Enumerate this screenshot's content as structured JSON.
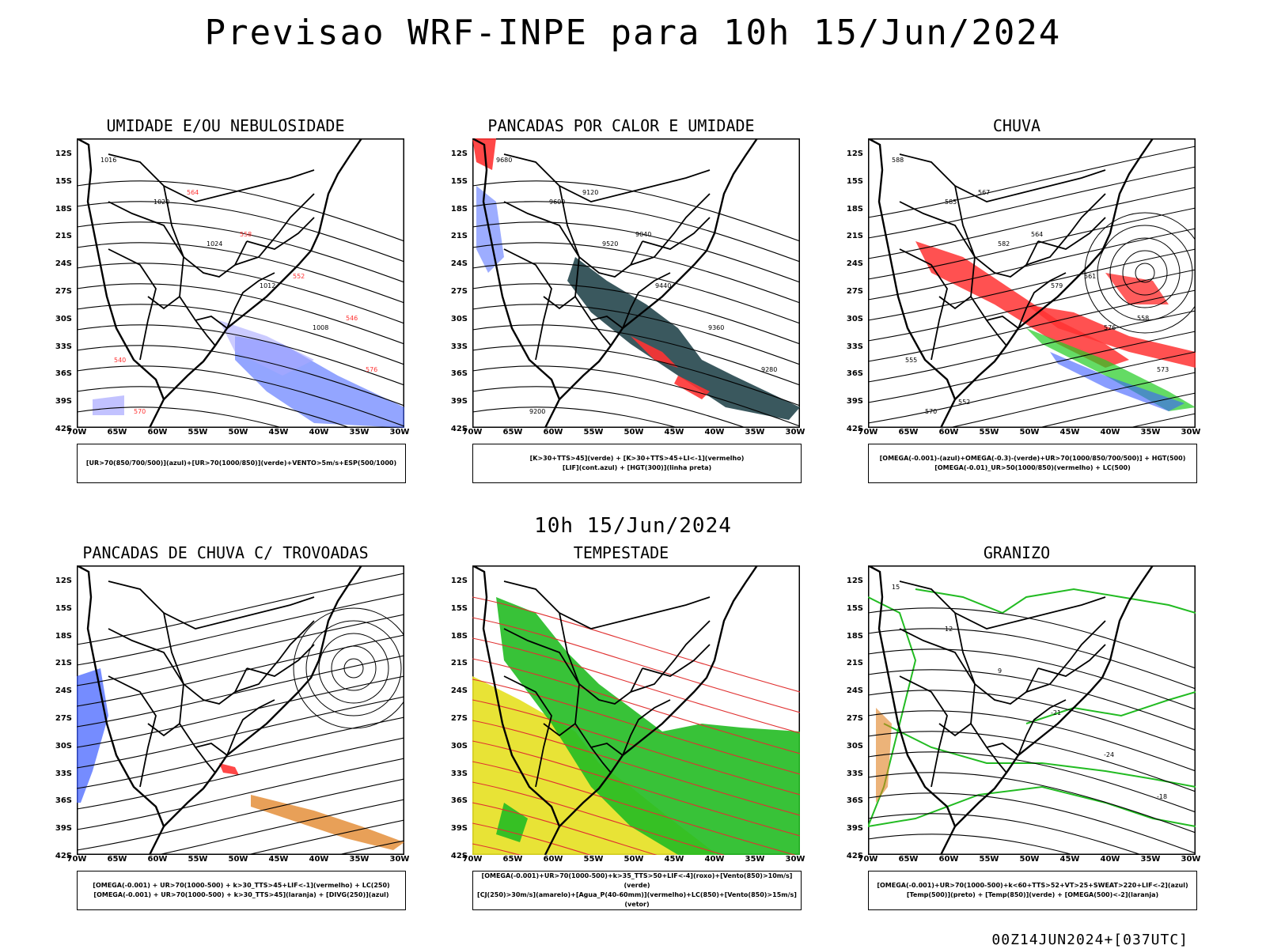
{
  "header": {
    "title": "Previsao WRF-INPE  para 10h 15/Jun/2024"
  },
  "subheader": {
    "title": "10h 15/Jun/2024"
  },
  "footer": {
    "run": "00Z14JUN2024+[037UTC]"
  },
  "axes": {
    "lat_labels": [
      "12S",
      "15S",
      "18S",
      "21S",
      "24S",
      "27S",
      "30S",
      "33S",
      "36S",
      "39S",
      "42S"
    ],
    "lon_labels": [
      "70W",
      "65W",
      "60W",
      "55W",
      "50W",
      "45W",
      "40W",
      "35W",
      "30W"
    ]
  },
  "colors": {
    "blue": "#3b5bff",
    "green": "#22cc22",
    "red": "#ff3333",
    "orange": "#e08020",
    "yellow": "#e6e020",
    "darkteal": "#2f4f55",
    "lightblue": "#a8a8ff"
  },
  "panels": [
    {
      "title": "UMIDADE E/OU NEBULOSIDADE",
      "legend": [
        "[UR>70(850/700/500)](azul)+[UR>70(1000/850)](verde)+VENTO>5m/s+ESP(500/1000)"
      ],
      "contour_labels": [
        "1016",
        "1020",
        "1024",
        "1012",
        "1008",
        "576",
        "570",
        "564",
        "558",
        "552",
        "546",
        "540"
      ]
    },
    {
      "title": "PANCADAS POR CALOR E UMIDADE",
      "legend": [
        "[K>30+TTS>45](verde) + [K>30+TTS>45+LI<-1](vermelho)",
        "[LIF](cont.azul) + [HGT(300)](linha preta)"
      ],
      "contour_labels": [
        "9680",
        "9600",
        "9520",
        "9440",
        "9360",
        "9280",
        "9200",
        "9120",
        "9040"
      ]
    },
    {
      "title": "CHUVA",
      "legend": [
        "[OMEGA(-0.001)-(azul)+OMEGA(-0.3)-(verde)+UR>70(1000/850/700/500)] + HGT(500)",
        "[OMEGA(-0.01)_UR>50(1000/850)(vermelho) + LC(500)"
      ],
      "contour_labels": [
        "588",
        "585",
        "582",
        "579",
        "576",
        "573",
        "570",
        "567",
        "564",
        "561",
        "558",
        "555",
        "552"
      ]
    },
    {
      "title": "PANCADAS DE CHUVA C/ TROVOADAS",
      "legend": [
        "[OMEGA(-0.001) + UR>70(1000-500) + k>30_TTS>45+LIF<-1](vermelho) + LC(250)",
        "[OMEGA(-0.001) + UR>70(1000-500) + k>30_TTS>45](laranja) + [DIVG(250)](azul)"
      ],
      "contour_labels": []
    },
    {
      "title": "TEMPESTADE",
      "legend": [
        "[OMEGA(-0.001)+UR>70(1000-500)+k>35_TTS>50+LIF<-4](roxo)+[Vento(850)>10m/s](verde)",
        "[CJ(250)>30m/s](amarelo)+[Agua_P(40-60mm)](vermelho)+LC(850)+[Vento(850)>15m/s](vetor)"
      ],
      "contour_labels": []
    },
    {
      "title": "GRANIZO",
      "legend": [
        "[OMEGA(-0.001)+UR>70(1000-500)+k<60+TTS>52+VT>25+SWEAT>220+LIF<-2](azul)",
        "[Temp(500)](preto) + [Temp(850)](verde) + [OMEGA(500)<-2](laranja)"
      ],
      "contour_labels": [
        "15",
        "12",
        "9",
        "-21",
        "-24",
        "-18"
      ]
    }
  ]
}
